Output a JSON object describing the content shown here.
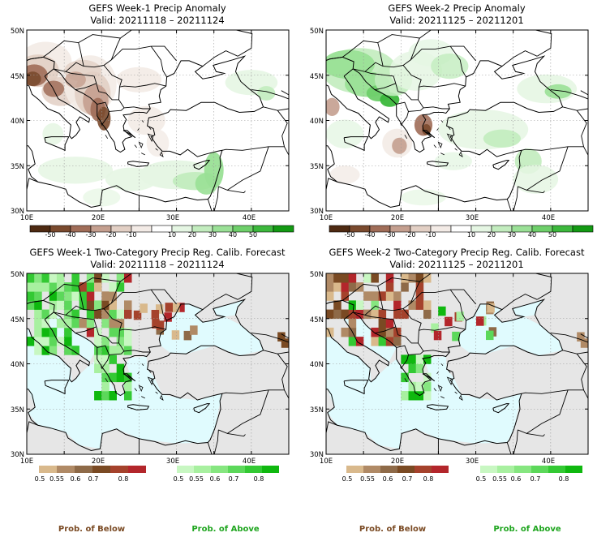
{
  "panels": [
    {
      "id": "tl",
      "title": "GEFS Week-1 Precip Anomaly",
      "valid": "Valid: 20211118 – 20211124"
    },
    {
      "id": "tr",
      "title": "GEFS Week-2 Precip Anomaly",
      "valid": "Valid: 20211125 – 20211201"
    },
    {
      "id": "bl",
      "title": "GEFS Week-1 Two-Category Precip Reg. Calib. Forecast",
      "valid": "Valid: 20211118 – 20211124"
    },
    {
      "id": "br",
      "title": "GEFS Week-2 Two-Category Precip Reg. Calib. Forecast",
      "valid": "Valid: 20211125 – 20211201"
    }
  ],
  "axes": {
    "lat_labels": [
      "30N",
      "35N",
      "40N",
      "45N",
      "50N"
    ],
    "lon_labels": [
      "10E",
      "20E",
      "30E",
      "40E"
    ]
  },
  "anomaly_colorbar": {
    "labels": [
      "-50",
      "-40",
      "-30",
      "-20",
      "-10",
      "10",
      "20",
      "30",
      "40",
      "50"
    ],
    "colors": [
      "#4e2a12",
      "#7a4a2e",
      "#a06d58",
      "#c49f8f",
      "#e2cfc4",
      "#f3ebe6",
      "#ffffff",
      "#e5f6e3",
      "#c2ecbe",
      "#9ae096",
      "#6ecf6a",
      "#3cb83c",
      "#139a13"
    ]
  },
  "prob_colorbar": {
    "labels": [
      "0.5",
      "0.55",
      "0.6",
      "0.7",
      "0.8"
    ],
    "below_colors": [
      "#d9b98c",
      "#b08a66",
      "#8e6a48",
      "#7a4a23",
      "#a5422c",
      "#b3262b"
    ],
    "above_colors": [
      "#c8f7c2",
      "#a8f0a0",
      "#86e680",
      "#5cd85a",
      "#33c933",
      "#0fb80f"
    ],
    "below_label": "Prob. of Below",
    "above_label": "Prob. of Above"
  },
  "colors": {
    "land_gray": "#e6e6e6",
    "sea": "#e0fbfe",
    "border": "#000000",
    "grid": "#9a9a9a"
  }
}
